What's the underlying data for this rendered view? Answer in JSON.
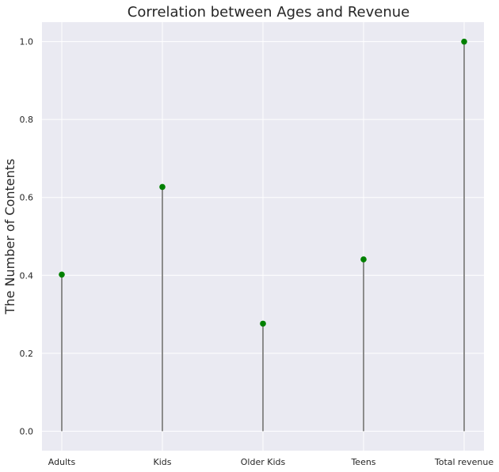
{
  "chart_data": {
    "type": "lollipop",
    "title": "Correlation between Ages and Revenue",
    "xlabel": "",
    "ylabel": "The Number of Contents",
    "categories": [
      "Adults",
      "Kids",
      "Older Kids",
      "Teens",
      "Total revenue"
    ],
    "values": [
      0.402,
      0.627,
      0.276,
      0.441,
      1.0
    ],
    "ylim": [
      -0.05,
      1.05
    ],
    "yticks": [
      0.0,
      0.2,
      0.4,
      0.6,
      0.8,
      1.0
    ],
    "ytick_labels": [
      "0.0",
      "0.2",
      "0.4",
      "0.6",
      "0.8",
      "1.0"
    ],
    "grid": true,
    "colors": {
      "background": "#eaeaf2",
      "grid": "#ffffff",
      "stem": "#8c8c8c",
      "marker": "#008000"
    }
  }
}
